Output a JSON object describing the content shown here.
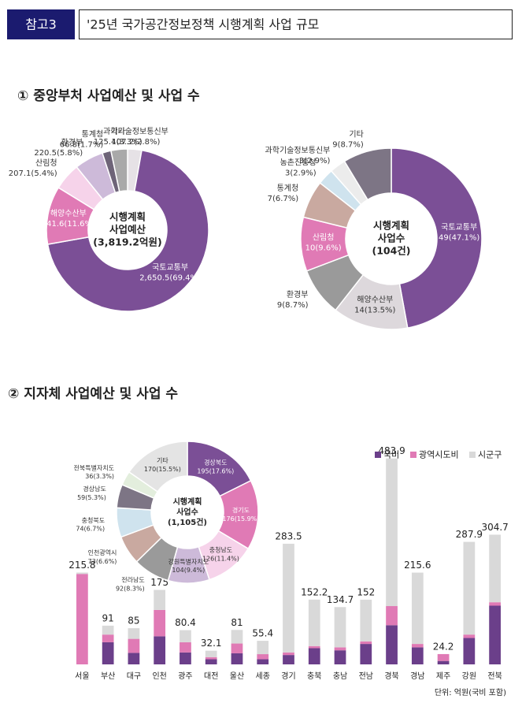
{
  "header": {
    "badge": "참고3",
    "title": "'25년 국가공간정보정책 시행계획 사업 규모"
  },
  "sections": [
    "① 중앙부처 사업예산 및 사업 수",
    "② 지자체 사업예산 및 사업 수"
  ],
  "chart_data": [
    {
      "type": "donut",
      "center_text": [
        "시행계획",
        "사업예산",
        "(3,819.2억원)"
      ],
      "categories": [
        "과학기술정보통신부",
        "국토교통부",
        "해양수산부",
        "산림청",
        "환경부",
        "통계청",
        "기타"
      ],
      "values": [
        107.2,
        2650.5,
        441.6,
        207.1,
        220.5,
        66.8,
        125.4
      ],
      "value_labels": [
        "107.2",
        "2,650.5",
        "441.6",
        "207.1",
        "220.5",
        "66.8",
        "125.4"
      ],
      "percents": [
        2.8,
        69.4,
        11.6,
        5.4,
        5.8,
        1.7,
        3.3
      ],
      "percent_labels": [
        "(2.8%)",
        "(69.4%)",
        "(11.6%)",
        "(5.4%)",
        "(5.8%)",
        "(1.7%)",
        "(3.3%)"
      ],
      "colors": [
        "#e6e2e6",
        "#7b4f96",
        "#e07ab5",
        "#f6d3ea",
        "#cdbad9",
        "#6e6478",
        "#a9a9a9"
      ]
    },
    {
      "type": "donut",
      "center_text": [
        "시행계획",
        "사업수",
        "(104건)"
      ],
      "categories": [
        "국토교통부",
        "해양수산부",
        "환경부",
        "산림청",
        "통계청",
        "농촌진흥청",
        "과학기술정보통신부",
        "기타"
      ],
      "values": [
        49,
        14,
        9,
        10,
        7,
        3,
        3,
        9
      ],
      "percents": [
        47.1,
        13.5,
        8.7,
        9.6,
        6.7,
        2.9,
        2.9,
        8.7
      ],
      "percent_labels": [
        "(47.1%)",
        "(13.5%)",
        "(8.7%)",
        "(9.6%)",
        "(6.7%)",
        "(2.9%)",
        "(2.9%)",
        "(8.7%)"
      ],
      "colors": [
        "#7b4f96",
        "#ddd8dc",
        "#9a9a9a",
        "#e07ab5",
        "#c9a9a0",
        "#cfe3ee",
        "#ececec",
        "#7d7585"
      ]
    },
    {
      "type": "donut",
      "center_text": [
        "시행계획",
        "사업수",
        "(1,105건)"
      ],
      "categories": [
        "경상북도",
        "경기도",
        "충청남도",
        "강원특별자치도",
        "전라남도",
        "인천광역시",
        "충청북도",
        "경상남도",
        "전북특별자치도",
        "기타"
      ],
      "values": [
        195,
        176,
        126,
        104,
        92,
        73,
        74,
        59,
        36,
        170
      ],
      "percents": [
        17.6,
        15.9,
        11.4,
        9.4,
        8.3,
        6.6,
        6.7,
        5.3,
        3.3,
        15.5
      ],
      "percent_labels": [
        "(17.6%)",
        "(15.9%)",
        "(11.4%)",
        "(9.4%)",
        "(8.3%)",
        "(6.6%)",
        "(6.7%)",
        "(5.3%)",
        "(3.3%)",
        "(15.5%)"
      ],
      "colors": [
        "#7b4f96",
        "#e07ab5",
        "#f6d3ea",
        "#cdbad9",
        "#9a9a9a",
        "#c9a9a0",
        "#cfe3ee",
        "#7d7585",
        "#e3eedd",
        "#e4e4e4"
      ]
    },
    {
      "type": "stacked_bar",
      "categories": [
        "서울",
        "부산",
        "대구",
        "인천",
        "광주",
        "대전",
        "울산",
        "세종",
        "경기",
        "충북",
        "충남",
        "전남",
        "경북",
        "경남",
        "제주",
        "강원",
        "전북"
      ],
      "totals": [
        215.8,
        91,
        85,
        175,
        80.4,
        32.1,
        81,
        55.4,
        283.5,
        152.2,
        134.7,
        152,
        483.9,
        215.6,
        24.2,
        287.9,
        304.7
      ],
      "series": [
        {
          "name": "국비",
          "color": "#6b3f8a",
          "values": [
            0,
            52,
            27,
            66,
            28,
            12,
            26,
            12,
            22,
            38,
            33,
            48,
            92,
            40,
            8,
            62,
            138
          ]
        },
        {
          "name": "광역시도비",
          "color": "#e07ab5",
          "values": [
            212.5,
            18,
            33,
            62,
            24,
            5,
            23,
            12,
            6,
            5,
            7,
            6,
            45,
            8,
            16.2,
            8,
            8
          ]
        },
        {
          "name": "시군구",
          "color": "#d9d9d9",
          "values": [
            3.3,
            21,
            25,
            47,
            28.4,
            15.1,
            32,
            31.4,
            255.5,
            109.2,
            94.7,
            98,
            346.9,
            167.6,
            0,
            217.9,
            158.7
          ]
        }
      ],
      "ylim": [
        0,
        500
      ],
      "legend": "top-right",
      "note": "단위: 억원(국비 포함)"
    }
  ]
}
